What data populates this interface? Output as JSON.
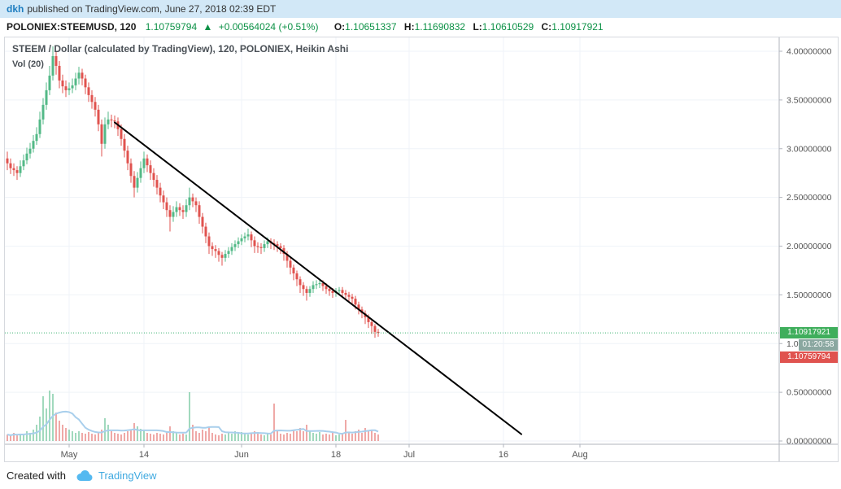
{
  "header": {
    "author": "dkh",
    "published_text": "published on TradingView.com, June 27, 2018 02:39 EDT"
  },
  "ticker": {
    "symbol": "POLONIEX:STEEMUSD, 120",
    "price": "1.10759794",
    "arrow": "▲",
    "change": "+0.00564024 (+0.51%)",
    "o_label": "O:",
    "o_value": "1.10651337",
    "h_label": "H:",
    "h_value": "1.11690832",
    "l_label": "L:",
    "l_value": "1.10610529",
    "c_label": "C:",
    "c_value": "1.10917921"
  },
  "legend": {
    "line1": "STEEM / Dollar (calculated by TradingView), 120, POLONIEX, Heikin Ashi",
    "line2": "Vol (20)"
  },
  "price_scale": {
    "current_badge": "1.10917921",
    "countdown": "01:20:58",
    "last_badge": "1.10759794"
  },
  "footer": {
    "created_with": "Created with",
    "brand": "TradingView"
  },
  "colors": {
    "header_bg": "#d2e8f7",
    "link_blue": "#1f7ec0",
    "value_green": "#0c9146",
    "candle_up": "#53b987",
    "candle_down": "#e0534f",
    "vol_up": "rgba(83,185,135,0.55)",
    "vol_down": "rgba(224,83,79,0.5)",
    "vol_ma": "#a9cfec",
    "trendline": "#000000",
    "price_line": "#3cb371",
    "badge_current_bg": "#3fae5c",
    "badge_countdown_bg": "#8aa7a0",
    "badge_last_bg": "#e0534f",
    "axis_text": "#555555",
    "axis_line": "#b2b5be",
    "grid": "#eff3f8",
    "brand_blue": "#3fa9e0",
    "logo_blue": "#55b9f0"
  },
  "chart_data": {
    "type": "candlestick",
    "title": "STEEM / Dollar (calculated by TradingView)",
    "exchange": "POLONIEX",
    "interval": "120",
    "chart_style": "Heikin Ashi",
    "indicator": "Vol (20)",
    "ylim": [
      0,
      4.18
    ],
    "grid": "faint",
    "price_line": 1.10917921,
    "y_ticks": [
      {
        "v": 4.0,
        "label": "4.00000000"
      },
      {
        "v": 3.5,
        "label": "3.50000000"
      },
      {
        "v": 3.0,
        "label": "3.00000000"
      },
      {
        "v": 2.5,
        "label": "2.50000000"
      },
      {
        "v": 2.0,
        "label": "2.00000000"
      },
      {
        "v": 1.5,
        "label": "1.50000000"
      },
      {
        "v": 1.0,
        "label": "1.00000000"
      },
      {
        "v": 0.5,
        "label": "0.50000000"
      },
      {
        "v": 0.0,
        "label": "0.00000000"
      }
    ],
    "x_ticks": [
      {
        "label": "May",
        "i": 19
      },
      {
        "label": "14",
        "i": 42
      },
      {
        "label": "Jun",
        "i": 72
      },
      {
        "label": "18",
        "i": 101
      },
      {
        "label": "Jul",
        "i": 123.5
      },
      {
        "label": "16",
        "i": 152.5
      },
      {
        "label": "Aug",
        "i": 176
      }
    ],
    "trendline": {
      "i1": 33,
      "p1": 3.27,
      "i2": 158,
      "p2": 0.07
    },
    "candles": [
      [
        2.9,
        2.97,
        2.78,
        2.85
      ],
      [
        2.85,
        2.9,
        2.74,
        2.8
      ],
      [
        2.8,
        2.85,
        2.72,
        2.78
      ],
      [
        2.78,
        2.82,
        2.68,
        2.75
      ],
      [
        2.75,
        2.88,
        2.71,
        2.82
      ],
      [
        2.82,
        2.94,
        2.78,
        2.88
      ],
      [
        2.88,
        3.01,
        2.84,
        2.95
      ],
      [
        2.95,
        3.06,
        2.9,
        3.0
      ],
      [
        3.0,
        3.14,
        2.96,
        3.08
      ],
      [
        3.08,
        3.22,
        3.04,
        3.15
      ],
      [
        3.15,
        3.38,
        3.11,
        3.3
      ],
      [
        3.3,
        3.52,
        3.25,
        3.45
      ],
      [
        3.45,
        3.68,
        3.4,
        3.6
      ],
      [
        3.6,
        3.85,
        3.55,
        3.75
      ],
      [
        3.75,
        4.05,
        3.7,
        3.95
      ],
      [
        3.95,
        4.0,
        3.76,
        3.85
      ],
      [
        3.85,
        3.9,
        3.62,
        3.7
      ],
      [
        3.7,
        3.76,
        3.57,
        3.64
      ],
      [
        3.64,
        3.7,
        3.53,
        3.6
      ],
      [
        3.6,
        3.68,
        3.55,
        3.62
      ],
      [
        3.62,
        3.72,
        3.57,
        3.65
      ],
      [
        3.65,
        3.78,
        3.6,
        3.72
      ],
      [
        3.72,
        3.84,
        3.66,
        3.78
      ],
      [
        3.78,
        3.82,
        3.65,
        3.72
      ],
      [
        3.72,
        3.76,
        3.56,
        3.63
      ],
      [
        3.63,
        3.68,
        3.48,
        3.55
      ],
      [
        3.55,
        3.6,
        3.41,
        3.48
      ],
      [
        3.48,
        3.53,
        3.33,
        3.4
      ],
      [
        3.4,
        3.45,
        3.18,
        3.25
      ],
      [
        3.25,
        3.3,
        2.92,
        3.05
      ],
      [
        3.05,
        3.32,
        3.0,
        3.25
      ],
      [
        3.25,
        3.38,
        3.2,
        3.3
      ],
      [
        3.3,
        3.35,
        3.22,
        3.29
      ],
      [
        3.29,
        3.34,
        3.21,
        3.28
      ],
      [
        3.28,
        3.32,
        3.13,
        3.2
      ],
      [
        3.2,
        3.25,
        3.03,
        3.1
      ],
      [
        3.1,
        3.15,
        2.91,
        2.98
      ],
      [
        2.98,
        3.03,
        2.78,
        2.85
      ],
      [
        2.85,
        2.9,
        2.65,
        2.72
      ],
      [
        2.72,
        2.77,
        2.5,
        2.6
      ],
      [
        2.6,
        2.76,
        2.55,
        2.7
      ],
      [
        2.7,
        2.87,
        2.65,
        2.8
      ],
      [
        2.8,
        2.97,
        2.75,
        2.9
      ],
      [
        2.9,
        2.94,
        2.76,
        2.83
      ],
      [
        2.83,
        2.88,
        2.68,
        2.75
      ],
      [
        2.75,
        2.8,
        2.61,
        2.68
      ],
      [
        2.68,
        2.73,
        2.53,
        2.6
      ],
      [
        2.6,
        2.65,
        2.45,
        2.52
      ],
      [
        2.52,
        2.57,
        2.38,
        2.45
      ],
      [
        2.45,
        2.5,
        2.3,
        2.37
      ],
      [
        2.37,
        2.42,
        2.15,
        2.3
      ],
      [
        2.3,
        2.41,
        2.25,
        2.35
      ],
      [
        2.35,
        2.46,
        2.3,
        2.4
      ],
      [
        2.4,
        2.44,
        2.31,
        2.37
      ],
      [
        2.37,
        2.42,
        2.28,
        2.35
      ],
      [
        2.35,
        2.48,
        2.3,
        2.42
      ],
      [
        2.42,
        2.6,
        2.37,
        2.5
      ],
      [
        2.5,
        2.54,
        2.4,
        2.46
      ],
      [
        2.46,
        2.5,
        2.35,
        2.42
      ],
      [
        2.42,
        2.46,
        2.23,
        2.3
      ],
      [
        2.3,
        2.34,
        2.13,
        2.2
      ],
      [
        2.2,
        2.24,
        2.03,
        2.1
      ],
      [
        2.1,
        2.14,
        1.92,
        2.0
      ],
      [
        2.0,
        2.04,
        1.9,
        1.97
      ],
      [
        1.97,
        2.01,
        1.88,
        1.95
      ],
      [
        1.95,
        1.98,
        1.84,
        1.91
      ],
      [
        1.91,
        1.94,
        1.8,
        1.88
      ],
      [
        1.88,
        1.96,
        1.84,
        1.92
      ],
      [
        1.92,
        1.99,
        1.88,
        1.95
      ],
      [
        1.95,
        2.03,
        1.91,
        1.99
      ],
      [
        1.99,
        2.06,
        1.95,
        2.02
      ],
      [
        2.02,
        2.09,
        1.98,
        2.05
      ],
      [
        2.05,
        2.12,
        2.01,
        2.08
      ],
      [
        2.08,
        2.14,
        2.04,
        2.1
      ],
      [
        2.1,
        2.18,
        2.06,
        2.12
      ],
      [
        2.12,
        2.15,
        1.99,
        2.06
      ],
      [
        2.06,
        2.1,
        1.93,
        2.0
      ],
      [
        2.0,
        2.04,
        1.93,
        1.99
      ],
      [
        1.99,
        2.03,
        1.92,
        1.98
      ],
      [
        1.98,
        2.06,
        1.94,
        2.02
      ],
      [
        2.02,
        2.09,
        1.98,
        2.05
      ],
      [
        2.05,
        2.08,
        1.97,
        2.03
      ],
      [
        2.03,
        2.07,
        1.96,
        2.02
      ],
      [
        2.02,
        2.05,
        1.94,
        2.0
      ],
      [
        2.0,
        2.03,
        1.92,
        1.98
      ],
      [
        1.98,
        2.01,
        1.85,
        1.92
      ],
      [
        1.92,
        1.95,
        1.78,
        1.85
      ],
      [
        1.85,
        1.88,
        1.71,
        1.78
      ],
      [
        1.78,
        1.81,
        1.65,
        1.72
      ],
      [
        1.72,
        1.75,
        1.59,
        1.66
      ],
      [
        1.66,
        1.69,
        1.52,
        1.6
      ],
      [
        1.6,
        1.63,
        1.49,
        1.56
      ],
      [
        1.56,
        1.59,
        1.44,
        1.52
      ],
      [
        1.52,
        1.59,
        1.48,
        1.56
      ],
      [
        1.56,
        1.64,
        1.52,
        1.6
      ],
      [
        1.6,
        1.65,
        1.56,
        1.61
      ],
      [
        1.61,
        1.66,
        1.57,
        1.62
      ],
      [
        1.62,
        1.65,
        1.54,
        1.59
      ],
      [
        1.59,
        1.62,
        1.51,
        1.56
      ],
      [
        1.56,
        1.59,
        1.49,
        1.54
      ],
      [
        1.54,
        1.57,
        1.47,
        1.52
      ],
      [
        1.52,
        1.57,
        1.48,
        1.54
      ],
      [
        1.54,
        1.58,
        1.5,
        1.55
      ],
      [
        1.55,
        1.58,
        1.47,
        1.52
      ],
      [
        1.52,
        1.55,
        1.45,
        1.5
      ],
      [
        1.5,
        1.53,
        1.43,
        1.48
      ],
      [
        1.48,
        1.51,
        1.41,
        1.46
      ],
      [
        1.46,
        1.49,
        1.35,
        1.4
      ],
      [
        1.4,
        1.43,
        1.3,
        1.35
      ],
      [
        1.35,
        1.38,
        1.26,
        1.31
      ],
      [
        1.31,
        1.34,
        1.2,
        1.27
      ],
      [
        1.27,
        1.3,
        1.16,
        1.22
      ],
      [
        1.22,
        1.25,
        1.1,
        1.18
      ],
      [
        1.18,
        1.2,
        1.06,
        1.12
      ],
      [
        1.12,
        1.15,
        1.07,
        1.11
      ]
    ],
    "volumes": [
      8,
      6,
      10,
      7,
      9,
      8,
      12,
      10,
      14,
      20,
      30,
      55,
      40,
      62,
      58,
      35,
      25,
      20,
      16,
      14,
      12,
      10,
      12,
      10,
      9,
      11,
      9,
      8,
      10,
      14,
      28,
      20,
      12,
      10,
      9,
      8,
      10,
      12,
      14,
      22,
      18,
      15,
      13,
      10,
      9,
      8,
      10,
      9,
      8,
      10,
      18,
      12,
      10,
      8,
      9,
      8,
      60,
      20,
      12,
      10,
      14,
      12,
      18,
      10,
      8,
      7,
      9,
      8,
      10,
      9,
      12,
      10,
      11,
      9,
      8,
      10,
      12,
      9,
      8,
      7,
      9,
      8,
      46,
      12,
      9,
      8,
      10,
      9,
      14,
      12,
      16,
      12,
      20,
      12,
      10,
      9,
      11,
      8,
      9,
      8,
      10,
      7,
      8,
      9,
      26,
      10,
      9,
      12,
      14,
      10,
      16,
      12,
      14,
      10,
      8
    ],
    "volume_ma_window": 10
  }
}
